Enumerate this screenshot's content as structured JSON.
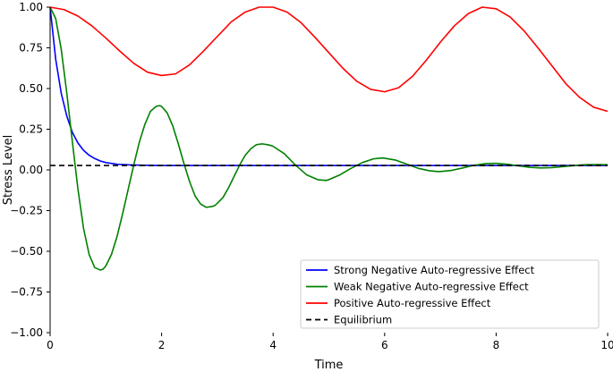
{
  "chart_data": {
    "type": "line",
    "xlabel": "Time",
    "ylabel": "Stress Level",
    "xlim": [
      0,
      10
    ],
    "ylim": [
      -1.0,
      1.0
    ],
    "x_ticks": [
      0,
      2,
      4,
      6,
      8,
      10
    ],
    "x_tick_labels": [
      "0",
      "2",
      "4",
      "6",
      "8",
      "10"
    ],
    "y_ticks": [
      -1.0,
      -0.75,
      -0.5,
      -0.25,
      0.0,
      0.25,
      0.5,
      0.75,
      1.0
    ],
    "y_tick_labels": [
      "−1.00",
      "−0.75",
      "−0.50",
      "−0.25",
      "0.00",
      "0.25",
      "0.50",
      "0.75",
      "1.00"
    ],
    "grid": false,
    "legend_position": "lower-right",
    "series": [
      {
        "name": "Strong Negative Auto-regressive Effect",
        "color": "#0000ff",
        "style": "solid",
        "x": [
          0,
          0.1,
          0.2,
          0.3,
          0.4,
          0.5,
          0.6,
          0.7,
          0.8,
          0.9,
          1.0,
          1.2,
          1.4,
          1.6,
          1.8,
          2.0,
          3.0,
          4.0,
          5.0,
          6.0,
          7.0,
          8.0,
          9.0,
          10.0
        ],
        "y": [
          1.0,
          0.68,
          0.47,
          0.33,
          0.23,
          0.165,
          0.12,
          0.09,
          0.07,
          0.055,
          0.045,
          0.035,
          0.031,
          0.029,
          0.028,
          0.027,
          0.027,
          0.027,
          0.027,
          0.027,
          0.027,
          0.027,
          0.027,
          0.027
        ]
      },
      {
        "name": "Weak Negative Auto-regressive Effect",
        "color": "#008000",
        "style": "solid",
        "x": [
          0,
          0.1,
          0.2,
          0.3,
          0.4,
          0.5,
          0.6,
          0.7,
          0.8,
          0.9,
          0.95,
          1.0,
          1.1,
          1.2,
          1.3,
          1.4,
          1.5,
          1.6,
          1.7,
          1.8,
          1.9,
          1.96,
          2.0,
          2.1,
          2.2,
          2.3,
          2.4,
          2.5,
          2.6,
          2.7,
          2.8,
          2.9,
          2.95,
          3.0,
          3.1,
          3.2,
          3.3,
          3.4,
          3.5,
          3.6,
          3.7,
          3.8,
          3.9,
          3.96,
          4.0,
          4.2,
          4.4,
          4.6,
          4.8,
          4.95,
          5.0,
          5.2,
          5.4,
          5.6,
          5.8,
          5.95,
          6.0,
          6.2,
          6.4,
          6.6,
          6.8,
          6.95,
          7.0,
          7.2,
          7.4,
          7.6,
          7.8,
          7.95,
          8.0,
          8.2,
          8.4,
          8.6,
          8.8,
          9.0,
          9.2,
          9.4,
          9.6,
          9.8,
          10.0
        ],
        "y": [
          1.0,
          0.93,
          0.74,
          0.47,
          0.17,
          -0.12,
          -0.36,
          -0.52,
          -0.6,
          -0.615,
          -0.61,
          -0.59,
          -0.52,
          -0.41,
          -0.27,
          -0.12,
          0.03,
          0.17,
          0.28,
          0.36,
          0.39,
          0.395,
          0.39,
          0.35,
          0.27,
          0.16,
          0.04,
          -0.07,
          -0.16,
          -0.21,
          -0.23,
          -0.225,
          -0.22,
          -0.205,
          -0.17,
          -0.11,
          -0.04,
          0.03,
          0.09,
          0.13,
          0.155,
          0.16,
          0.155,
          0.15,
          0.145,
          0.1,
          0.03,
          -0.03,
          -0.06,
          -0.065,
          -0.06,
          -0.03,
          0.01,
          0.045,
          0.068,
          0.073,
          0.072,
          0.06,
          0.035,
          0.01,
          -0.005,
          -0.01,
          -0.01,
          -0.003,
          0.012,
          0.028,
          0.038,
          0.04,
          0.04,
          0.035,
          0.025,
          0.016,
          0.012,
          0.014,
          0.02,
          0.027,
          0.032,
          0.033,
          0.032
        ]
      },
      {
        "name": "Positive Auto-regressive Effect",
        "color": "#ff0000",
        "style": "solid",
        "x": [
          0,
          0.25,
          0.5,
          0.75,
          1.0,
          1.25,
          1.5,
          1.75,
          2.0,
          2.25,
          2.5,
          2.75,
          3.0,
          3.25,
          3.5,
          3.75,
          4.0,
          4.25,
          4.5,
          4.75,
          5.0,
          5.25,
          5.5,
          5.75,
          6.0,
          6.25,
          6.5,
          6.75,
          7.0,
          7.25,
          7.5,
          7.75,
          8.0,
          8.25,
          8.5,
          8.75,
          9.0,
          9.25,
          9.5,
          9.75,
          10.0
        ],
        "y": [
          1.0,
          0.985,
          0.945,
          0.885,
          0.81,
          0.73,
          0.655,
          0.6,
          0.58,
          0.59,
          0.645,
          0.73,
          0.82,
          0.91,
          0.97,
          1.0,
          1.0,
          0.97,
          0.905,
          0.815,
          0.72,
          0.625,
          0.545,
          0.495,
          0.48,
          0.505,
          0.575,
          0.675,
          0.785,
          0.885,
          0.96,
          1.0,
          0.99,
          0.94,
          0.855,
          0.75,
          0.64,
          0.53,
          0.445,
          0.385,
          0.36
        ]
      },
      {
        "name": "Equilibrium",
        "color": "#000000",
        "style": "dashed",
        "x": [
          0,
          10
        ],
        "y": [
          0.027,
          0.027
        ]
      }
    ]
  }
}
